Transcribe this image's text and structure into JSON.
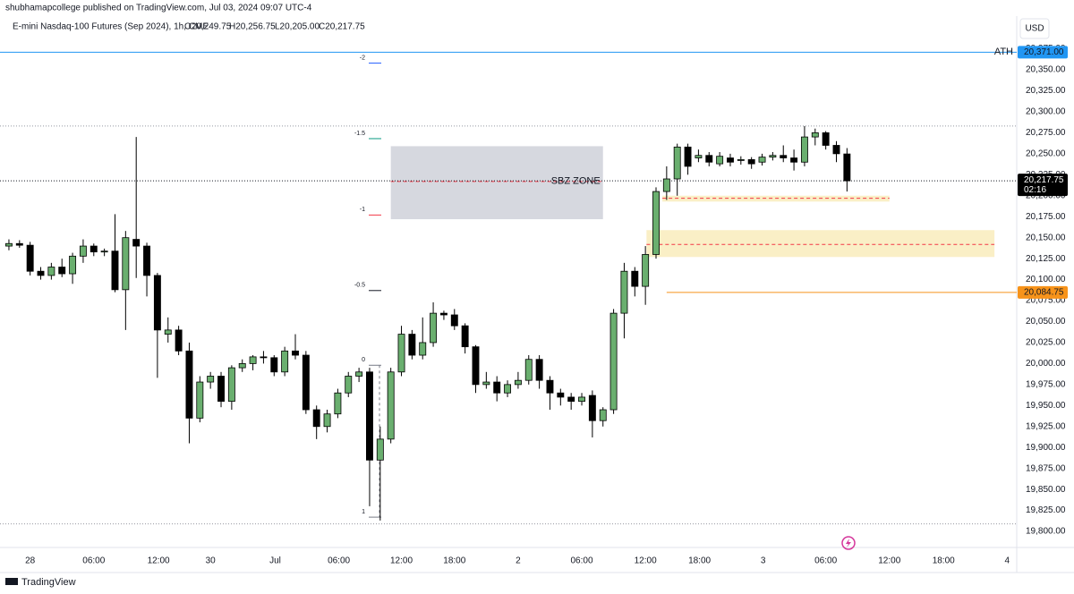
{
  "header": {
    "published": "shubhamapcollege published on TradingView.com, Jul 03, 2024 09:07 UTC-4",
    "symbol": "E-mini Nasdaq-100 Futures (Sep 2024), 1h, CME",
    "ohlc": [
      "O20,249.75",
      "H20,256.75",
      "L20,205.00",
      "C20,217.75"
    ],
    "currency": "USD"
  },
  "footer": {
    "brand": "TradingView"
  },
  "chart_data": {
    "type": "candlestick",
    "up_color": "#6aaf6f",
    "down_color": "#000000",
    "open": [
      20140,
      20143,
      20141,
      20110,
      20105,
      20115,
      20107,
      20128,
      20140,
      20133,
      20134,
      20088,
      20148,
      20140,
      20105,
      20035,
      20040,
      20015,
      19935,
      19978,
      19985,
      19955,
      19995,
      20000,
      20008,
      20007,
      19990,
      20015,
      20010,
      19945,
      19925,
      19940,
      19965,
      19985,
      19990,
      19885,
      19910,
      19990,
      20035,
      20010,
      20025,
      20060,
      20058,
      20045,
      20020,
      19975,
      19978,
      19965,
      19975,
      19980,
      20005,
      19980,
      19965,
      19960,
      19955,
      19962,
      19932,
      19945,
      20060,
      20110,
      20092,
      20130,
      20205,
      20220,
      20258,
      20245,
      20248,
      20238,
      20245,
      20242,
      20243,
      20240,
      20246,
      20248,
      20245,
      20240,
      20270,
      20275,
      20260,
      20249.75
    ],
    "high": [
      20148,
      20147,
      20145,
      20115,
      20120,
      20125,
      20132,
      20148,
      20143,
      20137,
      20178,
      20158,
      20270,
      20144,
      20108,
      20055,
      20045,
      20025,
      19985,
      19990,
      19990,
      19998,
      20005,
      20010,
      20015,
      20010,
      20020,
      20035,
      20015,
      19950,
      19945,
      19970,
      19990,
      19995,
      19995,
      19925,
      19995,
      20045,
      20040,
      20055,
      20073,
      20063,
      20065,
      20048,
      20022,
      19990,
      19985,
      19980,
      19990,
      20010,
      20010,
      19985,
      19970,
      19965,
      19965,
      19968,
      19948,
      20065,
      20120,
      20115,
      20140,
      20210,
      20235,
      20262,
      20262,
      20255,
      20252,
      20252,
      20250,
      20247,
      20246,
      20250,
      20252,
      20260,
      20255,
      20283,
      20280,
      20277,
      20265,
      20256.75
    ],
    "low": [
      20135,
      20138,
      20105,
      20100,
      20100,
      20103,
      20095,
      20120,
      20128,
      20128,
      20085,
      20040,
      20102,
      20080,
      19983,
      20025,
      20010,
      19905,
      19930,
      19970,
      19948,
      19945,
      19990,
      19992,
      20000,
      19985,
      19985,
      20005,
      19940,
      19910,
      19918,
      19935,
      19960,
      19978,
      19830,
      19813,
      19905,
      19985,
      20005,
      20005,
      20020,
      20052,
      20040,
      20012,
      19965,
      19970,
      19955,
      19960,
      19970,
      19975,
      19970,
      19945,
      19950,
      19945,
      19950,
      19912,
      19925,
      19940,
      20030,
      20080,
      20070,
      20125,
      20195,
      20200,
      20225,
      20240,
      20235,
      20235,
      20235,
      20237,
      20232,
      20236,
      20242,
      20240,
      20230,
      20235,
      20260,
      20255,
      20240,
      20205
    ],
    "close": [
      20143,
      20141,
      20110,
      20105,
      20115,
      20107,
      20128,
      20140,
      20133,
      20134,
      20088,
      20150,
      20140,
      20105,
      20040,
      20040,
      20015,
      19935,
      19978,
      19985,
      19955,
      19995,
      20000,
      20008,
      20007,
      19990,
      20015,
      20010,
      19945,
      19925,
      19940,
      19965,
      19985,
      19990,
      19885,
      19910,
      19990,
      20035,
      20010,
      20025,
      20060,
      20058,
      20045,
      20020,
      19975,
      19978,
      19965,
      19975,
      19980,
      20005,
      19980,
      19965,
      19960,
      19955,
      19960,
      19932,
      19945,
      20060,
      20110,
      20092,
      20130,
      20205,
      20220,
      20258,
      20235,
      20248,
      20240,
      20247,
      20240,
      20243,
      20238,
      20246,
      20248,
      20245,
      20240,
      20270,
      20275,
      20260,
      20250,
      20217.75
    ],
    "xlim": [
      -0.84,
      95.0
    ],
    "xticks": [
      {
        "value": 2.0,
        "label": "28"
      },
      {
        "value": 8.0,
        "label": "06:00"
      },
      {
        "value": 14.1,
        "label": "12:00"
      },
      {
        "value": 19.0,
        "label": "30"
      },
      {
        "value": 25.1,
        "label": "Jul"
      },
      {
        "value": 31.1,
        "label": "06:00"
      },
      {
        "value": 37.0,
        "label": "12:00"
      },
      {
        "value": 42.0,
        "label": "18:00"
      },
      {
        "value": 48.0,
        "label": "2"
      },
      {
        "value": 54.0,
        "label": "06:00"
      },
      {
        "value": 60.0,
        "label": "12:00"
      },
      {
        "value": 65.1,
        "label": "18:00"
      },
      {
        "value": 71.1,
        "label": "3"
      },
      {
        "value": 77.0,
        "label": "06:00"
      },
      {
        "value": 83.0,
        "label": "12:00"
      },
      {
        "value": 88.1,
        "label": "18:00"
      },
      {
        "value": 94.1,
        "label": "4"
      }
    ],
    "ylim": [
      19783,
      20414
    ],
    "yticks": [
      {
        "value": 19800,
        "label": "19,800.00"
      },
      {
        "value": 19825,
        "label": "19,825.00"
      },
      {
        "value": 19850,
        "label": "19,850.00"
      },
      {
        "value": 19875,
        "label": "19,875.00"
      },
      {
        "value": 19900,
        "label": "19,900.00"
      },
      {
        "value": 19925,
        "label": "19,925.00"
      },
      {
        "value": 19950,
        "label": "19,950.00"
      },
      {
        "value": 19975,
        "label": "19,975.00"
      },
      {
        "value": 20000,
        "label": "20,000.00"
      },
      {
        "value": 20025,
        "label": "20,025.00"
      },
      {
        "value": 20050,
        "label": "20,050.00"
      },
      {
        "value": 20075,
        "label": "20,075.00"
      },
      {
        "value": 20100,
        "label": "20,100.00"
      },
      {
        "value": 20125,
        "label": "20,125.00"
      },
      {
        "value": 20150,
        "label": "20,150.00"
      },
      {
        "value": 20175,
        "label": "20,175.00"
      },
      {
        "value": 20200,
        "label": "20,200.00"
      },
      {
        "value": 20225,
        "label": "20,225.00"
      },
      {
        "value": 20250,
        "label": "20,250.00"
      },
      {
        "value": 20275,
        "label": "20,275.00"
      },
      {
        "value": 20300,
        "label": "20,300.00"
      },
      {
        "value": 20325,
        "label": "20,325.00"
      },
      {
        "value": 20350,
        "label": "20,350.00"
      },
      {
        "value": 20375,
        "label": "20,375.00"
      }
    ],
    "zones": [
      {
        "label": "SBZ ZONE",
        "top": 20259,
        "bottom": 20172,
        "mid": 20217,
        "start": 36.0,
        "end": 56.0,
        "color": "#d1d4dc"
      },
      {
        "top": 20200,
        "bottom": 20193,
        "mid": 20197,
        "start": 61.6,
        "end": 83.0,
        "color": "#faedc0"
      },
      {
        "top": 20159,
        "bottom": 20127,
        "mid": 20142,
        "start": 60.1,
        "end": 92.9,
        "color": "#faedc0"
      }
    ],
    "fib_levels": [
      {
        "label": "-2",
        "value": 20358,
        "color": "#2962ff"
      },
      {
        "label": "-1.5",
        "value": 20268,
        "color": "#089981"
      },
      {
        "label": "-1",
        "value": 20177,
        "color": "#f23645"
      },
      {
        "label": "-0.5",
        "value": 20087,
        "color": "#131722"
      },
      {
        "label": "0",
        "value": 19998,
        "color": "#787b86"
      },
      {
        "label": "1",
        "value": 19817,
        "color": "#787b86"
      }
    ],
    "dotted_levels": [
      20283,
      19809
    ],
    "price_lines": [
      {
        "label": "ATH",
        "value": 20371,
        "tag": "20,371.00",
        "color": "#2196f3",
        "start": -0.84
      },
      {
        "value": 20084.75,
        "tag": "20,084.75",
        "color": "#f7931a",
        "start": 62.0
      }
    ],
    "last_price": {
      "value": 20217.75,
      "tag": "20,217.75",
      "countdown": "02:16"
    }
  }
}
